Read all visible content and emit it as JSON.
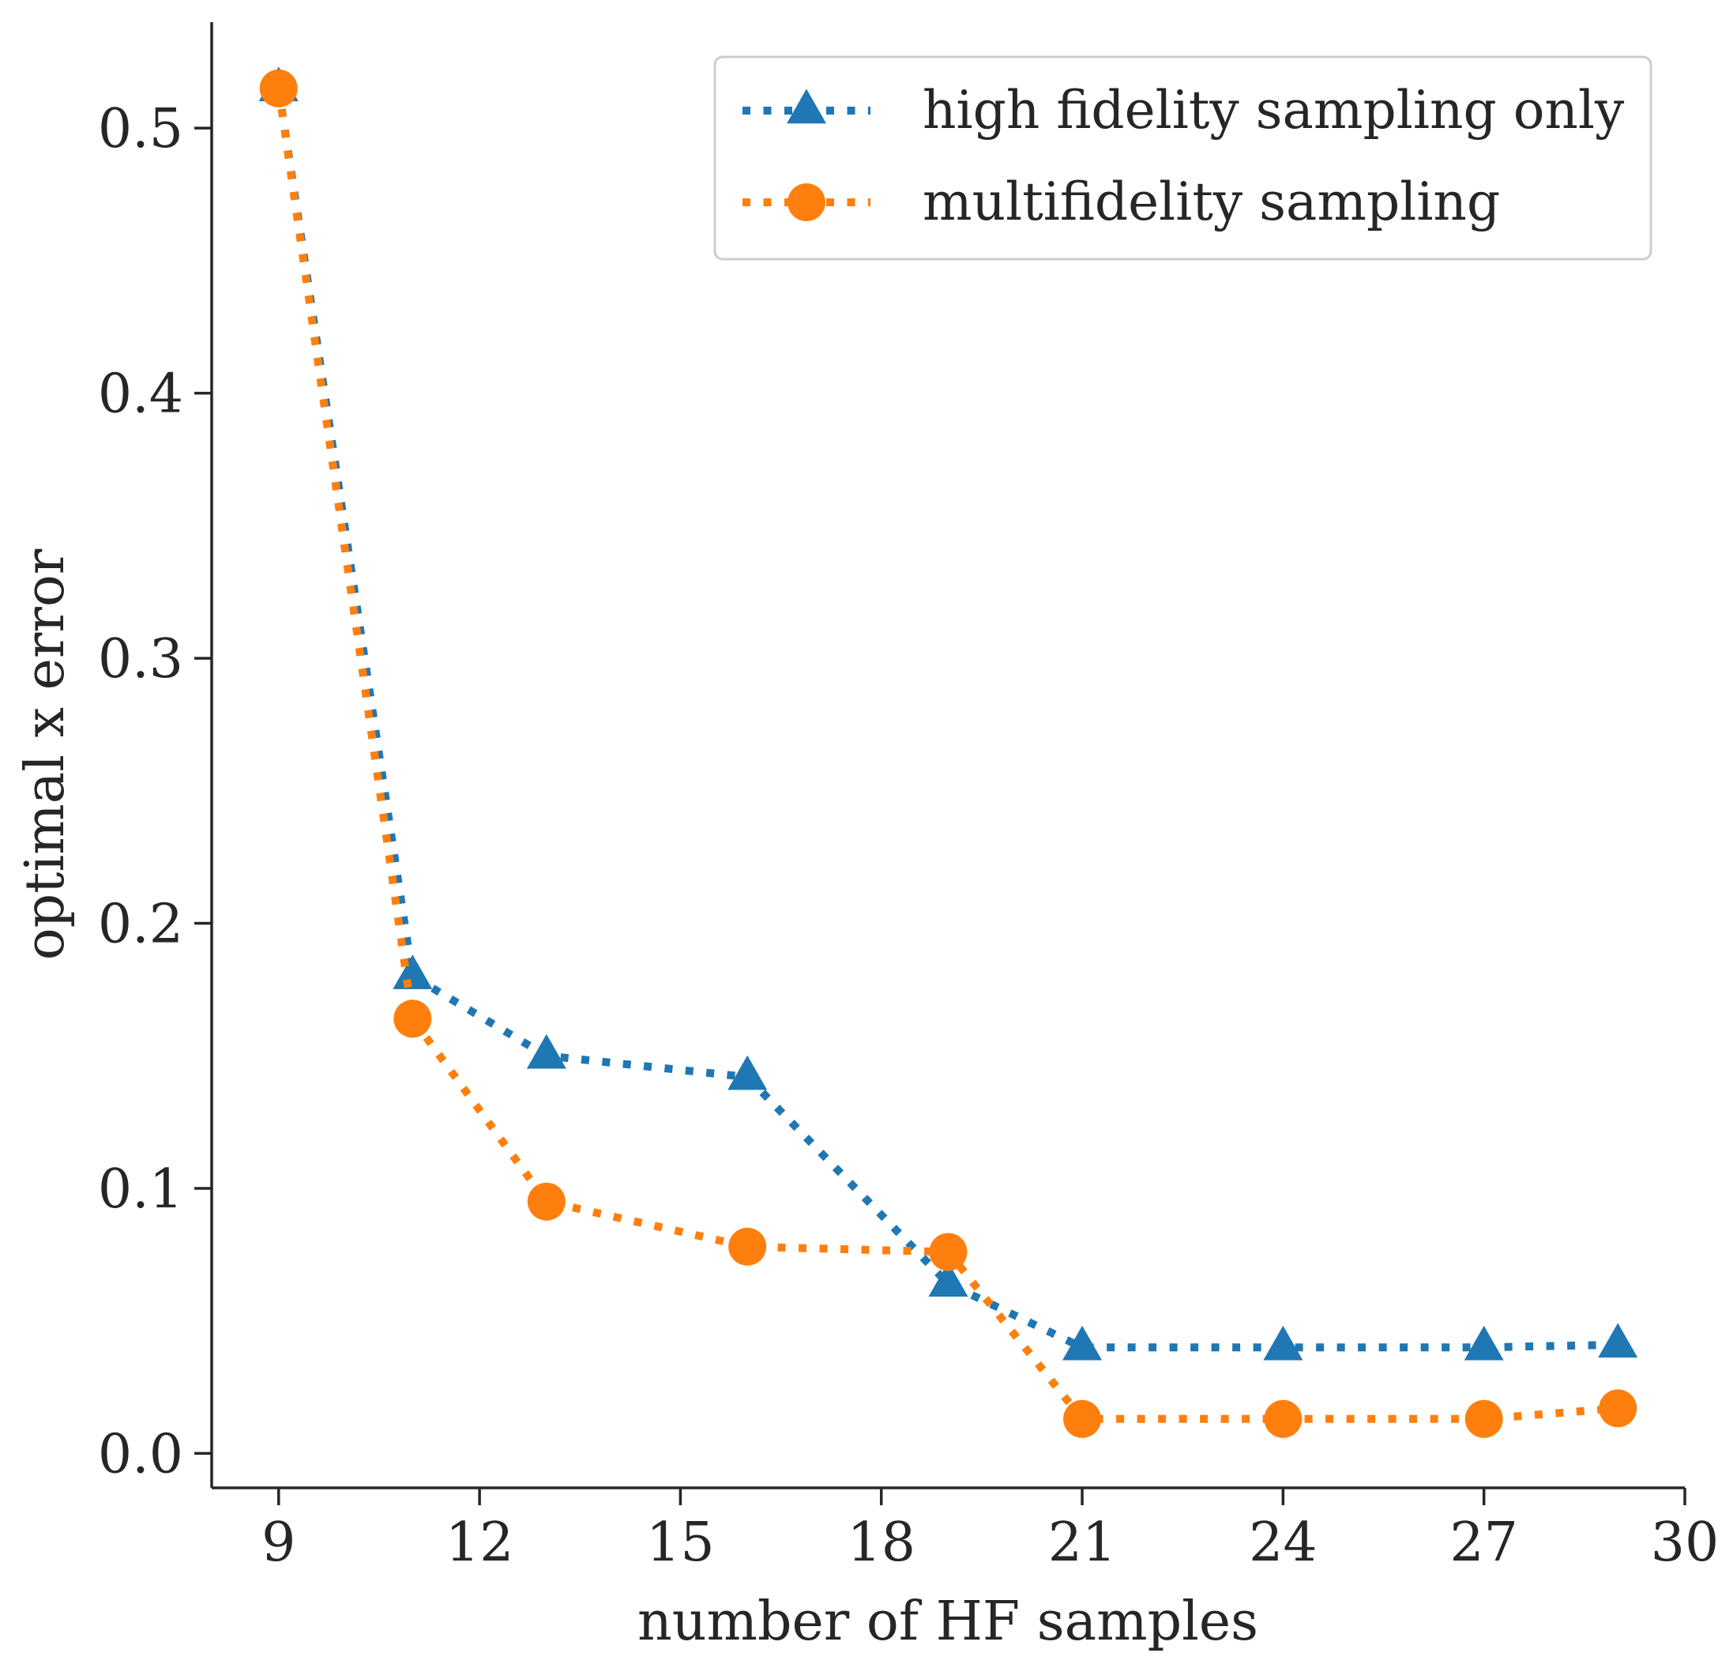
{
  "chart_data": {
    "type": "line",
    "title": "",
    "xlabel": "number of HF samples",
    "ylabel": "optimal x error",
    "xlim": [
      8,
      30
    ],
    "ylim": [
      -0.013,
      0.54
    ],
    "xticks": [
      9,
      12,
      15,
      18,
      21,
      24,
      27,
      30
    ],
    "yticks": [
      0.0,
      0.1,
      0.2,
      0.3,
      0.4,
      0.5
    ],
    "xtick_labels": [
      "9",
      "12",
      "15",
      "18",
      "21",
      "24",
      "27",
      "30"
    ],
    "ytick_labels": [
      "0.0",
      "0.1",
      "0.2",
      "0.3",
      "0.4",
      "0.5"
    ],
    "grid": false,
    "legend_position": "top-right",
    "line_style": "dotted",
    "series": [
      {
        "name": "high fidelity sampling only",
        "marker": "triangle",
        "color": "#1f77b4",
        "x": [
          9,
          11,
          13,
          16,
          19,
          21,
          24,
          27,
          29
        ],
        "y": [
          0.515,
          0.18,
          0.15,
          0.142,
          0.064,
          0.04,
          0.04,
          0.04,
          0.041
        ]
      },
      {
        "name": "multifidelity sampling",
        "marker": "circle",
        "color": "#ff7f0e",
        "x": [
          9,
          11,
          13,
          16,
          19,
          21,
          24,
          27,
          29
        ],
        "y": [
          0.515,
          0.164,
          0.095,
          0.078,
          0.076,
          0.013,
          0.013,
          0.013,
          0.017
        ]
      }
    ]
  }
}
